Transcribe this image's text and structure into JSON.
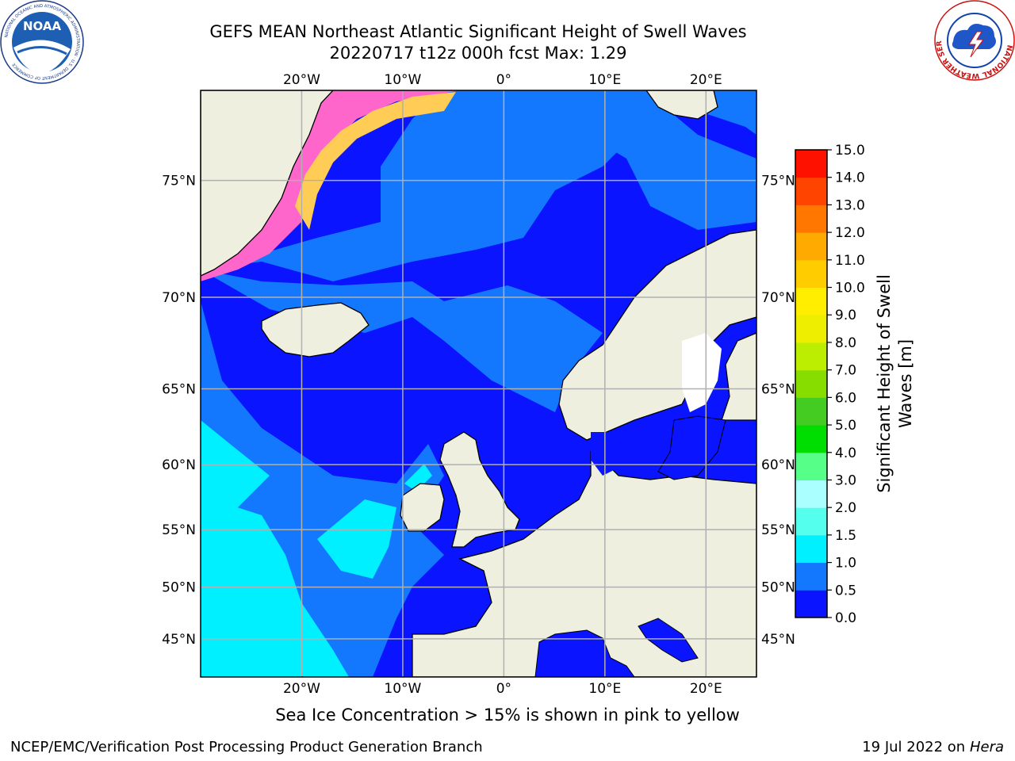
{
  "header": {
    "title": "GEFS MEAN Northeast Atlantic Significant Height of Swell Waves",
    "subtitle": "20220717 t12z 000h fcst   Max: 1.29"
  },
  "logos": {
    "left": {
      "name": "noaa-logo",
      "text": "NOAA",
      "ring_text": "NATIONAL OCEANIC AND ATMOSPHERIC ADMINISTRATION · U.S. DEPARTMENT OF COMMERCE"
    },
    "right": {
      "name": "nws-logo",
      "ring_text": "NATIONAL WEATHER SERVICE"
    }
  },
  "map": {
    "lon_range": [
      -30,
      25
    ],
    "lat_range": [
      41,
      78
    ],
    "lon_ticks": [
      {
        "value": -20,
        "label": "20°W"
      },
      {
        "value": -10,
        "label": "10°W"
      },
      {
        "value": 0,
        "label": "0°"
      },
      {
        "value": 10,
        "label": "10°E"
      },
      {
        "value": 20,
        "label": "20°E"
      }
    ],
    "lat_ticks": [
      {
        "value": 45,
        "label": "45°N"
      },
      {
        "value": 50,
        "label": "50°N"
      },
      {
        "value": 55,
        "label": "55°N"
      },
      {
        "value": 60,
        "label": "60°N"
      },
      {
        "value": 65,
        "label": "65°N"
      },
      {
        "value": 70,
        "label": "70°N"
      },
      {
        "value": 75,
        "label": "75°N"
      }
    ],
    "colors": {
      "land": "#efefdf",
      "coast": "#000000",
      "grid": "#b0b0b0",
      "ice": "#ff66cc",
      "ice_edge": "#ffcc55",
      "no_data": "#ffffff"
    }
  },
  "colorbar": {
    "label_line1": "Significant Height of Swell",
    "label_line2": "Waves [m]",
    "ticks": [
      "0.0",
      "0.5",
      "1.0",
      "1.5",
      "2.0",
      "3.0",
      "4.0",
      "5.0",
      "6.0",
      "7.0",
      "8.0",
      "9.0",
      "10.0",
      "11.0",
      "12.0",
      "13.0",
      "14.0",
      "15.0"
    ],
    "colors": [
      "#0a14ff",
      "#1478ff",
      "#00f0ff",
      "#55ffee",
      "#aaffff",
      "#55ff88",
      "#00dd00",
      "#44cc22",
      "#88dd00",
      "#bbee00",
      "#eeee00",
      "#ffee00",
      "#ffcc00",
      "#ffaa00",
      "#ff7700",
      "#ff4400",
      "#ff1100"
    ]
  },
  "notes": {
    "ice": "Sea Ice Concentration > 15% is shown in pink to yellow",
    "footer_left": "NCEP/EMC/Verification Post Processing Product Generation Branch",
    "footer_date": "19 Jul 2022 on ",
    "footer_host": "Hera"
  }
}
